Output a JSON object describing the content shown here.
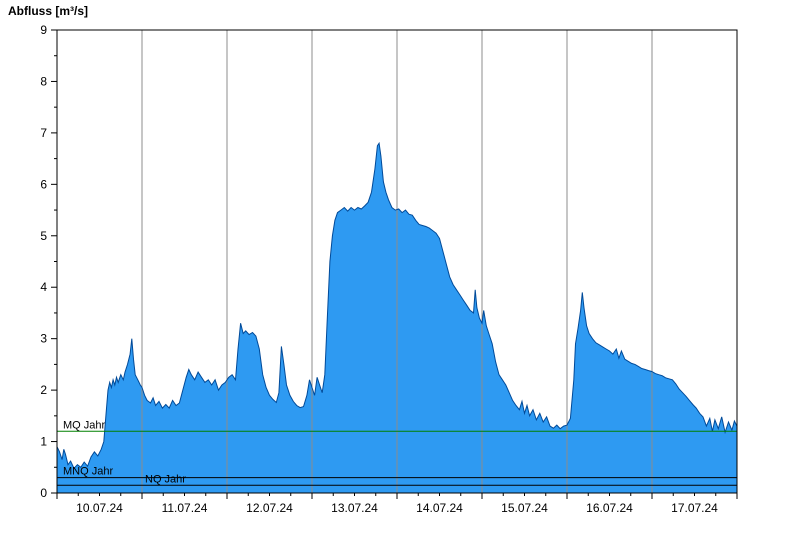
{
  "chart_data": {
    "type": "area",
    "title": "Abfluss [m³/s]",
    "xlabel": "",
    "ylabel": "Abfluss [m³/s]",
    "x_axis": {
      "labels": [
        "10.07.24",
        "11.07.24",
        "12.07.24",
        "13.07.24",
        "14.07.24",
        "15.07.24",
        "16.07.24",
        "17.07.24"
      ],
      "range_days": [
        0,
        8
      ]
    },
    "y_axis": {
      "min": 0,
      "max": 9,
      "tick_labels": [
        "0",
        "1",
        "2",
        "3",
        "4",
        "5",
        "6",
        "7",
        "8",
        "9"
      ]
    },
    "grid": "vertical-day-boundaries",
    "legend": "none",
    "series": [
      {
        "name": "Abfluss",
        "t_days": [
          0.0,
          0.03,
          0.06,
          0.08,
          0.1,
          0.13,
          0.16,
          0.2,
          0.24,
          0.28,
          0.32,
          0.36,
          0.4,
          0.44,
          0.48,
          0.52,
          0.55,
          0.58,
          0.6,
          0.62,
          0.64,
          0.66,
          0.68,
          0.7,
          0.72,
          0.75,
          0.78,
          0.8,
          0.83,
          0.86,
          0.88,
          0.9,
          0.92,
          0.95,
          0.98,
          1.0,
          1.03,
          1.06,
          1.1,
          1.13,
          1.16,
          1.2,
          1.24,
          1.28,
          1.32,
          1.36,
          1.4,
          1.44,
          1.48,
          1.52,
          1.55,
          1.58,
          1.62,
          1.66,
          1.7,
          1.74,
          1.78,
          1.82,
          1.86,
          1.9,
          1.94,
          1.98,
          2.02,
          2.06,
          2.1,
          2.13,
          2.16,
          2.19,
          2.22,
          2.26,
          2.3,
          2.34,
          2.38,
          2.42,
          2.46,
          2.5,
          2.54,
          2.58,
          2.61,
          2.64,
          2.67,
          2.7,
          2.74,
          2.78,
          2.82,
          2.86,
          2.9,
          2.94,
          2.97,
          3.0,
          3.03,
          3.06,
          3.09,
          3.12,
          3.15,
          3.18,
          3.21,
          3.24,
          3.27,
          3.3,
          3.34,
          3.38,
          3.42,
          3.46,
          3.5,
          3.54,
          3.58,
          3.62,
          3.66,
          3.7,
          3.74,
          3.77,
          3.79,
          3.81,
          3.84,
          3.87,
          3.9,
          3.94,
          3.98,
          4.02,
          4.06,
          4.1,
          4.14,
          4.18,
          4.22,
          4.26,
          4.3,
          4.34,
          4.38,
          4.42,
          4.46,
          4.5,
          4.54,
          4.58,
          4.62,
          4.66,
          4.7,
          4.74,
          4.78,
          4.82,
          4.86,
          4.9,
          4.92,
          4.94,
          4.97,
          5.0,
          5.02,
          5.05,
          5.08,
          5.12,
          5.16,
          5.2,
          5.24,
          5.28,
          5.32,
          5.36,
          5.4,
          5.44,
          5.47,
          5.5,
          5.53,
          5.56,
          5.6,
          5.64,
          5.68,
          5.72,
          5.76,
          5.8,
          5.84,
          5.88,
          5.92,
          5.96,
          6.0,
          6.04,
          6.08,
          6.1,
          6.13,
          6.16,
          6.18,
          6.2,
          6.23,
          6.26,
          6.3,
          6.34,
          6.38,
          6.42,
          6.46,
          6.5,
          6.54,
          6.58,
          6.61,
          6.64,
          6.68,
          6.72,
          6.76,
          6.8,
          6.84,
          6.88,
          6.92,
          6.96,
          7.0,
          7.04,
          7.08,
          7.12,
          7.16,
          7.2,
          7.24,
          7.28,
          7.32,
          7.36,
          7.4,
          7.44,
          7.48,
          7.52,
          7.56,
          7.6,
          7.64,
          7.68,
          7.71,
          7.74,
          7.78,
          7.82,
          7.86,
          7.9,
          7.94,
          7.97,
          8.0
        ],
        "values": [
          0.9,
          0.8,
          0.65,
          0.85,
          0.75,
          0.55,
          0.62,
          0.48,
          0.55,
          0.5,
          0.6,
          0.52,
          0.7,
          0.8,
          0.72,
          0.85,
          1.0,
          1.6,
          2.0,
          2.15,
          2.05,
          2.2,
          2.1,
          2.25,
          2.15,
          2.3,
          2.2,
          2.35,
          2.5,
          2.7,
          3.0,
          2.6,
          2.3,
          2.2,
          2.1,
          2.05,
          1.9,
          1.8,
          1.75,
          1.85,
          1.7,
          1.78,
          1.65,
          1.72,
          1.65,
          1.8,
          1.7,
          1.75,
          2.0,
          2.25,
          2.4,
          2.3,
          2.2,
          2.35,
          2.25,
          2.15,
          2.2,
          2.1,
          2.2,
          2.0,
          2.1,
          2.15,
          2.25,
          2.3,
          2.2,
          2.8,
          3.3,
          3.1,
          3.15,
          3.08,
          3.12,
          3.05,
          2.8,
          2.3,
          2.05,
          1.9,
          1.82,
          1.76,
          1.95,
          2.85,
          2.5,
          2.1,
          1.9,
          1.78,
          1.7,
          1.66,
          1.68,
          1.9,
          2.2,
          2.05,
          1.9,
          2.25,
          2.1,
          1.95,
          2.3,
          3.4,
          4.5,
          5.0,
          5.3,
          5.45,
          5.5,
          5.55,
          5.48,
          5.55,
          5.5,
          5.55,
          5.52,
          5.58,
          5.65,
          5.85,
          6.3,
          6.75,
          6.8,
          6.55,
          6.05,
          5.85,
          5.7,
          5.55,
          5.5,
          5.52,
          5.45,
          5.5,
          5.42,
          5.4,
          5.3,
          5.22,
          5.2,
          5.18,
          5.15,
          5.1,
          5.05,
          4.95,
          4.7,
          4.45,
          4.2,
          4.05,
          3.95,
          3.85,
          3.75,
          3.65,
          3.55,
          3.5,
          3.95,
          3.6,
          3.4,
          3.3,
          3.55,
          3.25,
          3.1,
          2.9,
          2.55,
          2.3,
          2.2,
          2.1,
          1.95,
          1.8,
          1.7,
          1.62,
          1.78,
          1.55,
          1.7,
          1.5,
          1.62,
          1.42,
          1.55,
          1.38,
          1.48,
          1.3,
          1.26,
          1.32,
          1.25,
          1.3,
          1.32,
          1.45,
          2.2,
          2.9,
          3.2,
          3.55,
          3.9,
          3.6,
          3.25,
          3.1,
          3.0,
          2.92,
          2.88,
          2.84,
          2.8,
          2.76,
          2.7,
          2.8,
          2.62,
          2.76,
          2.6,
          2.56,
          2.52,
          2.5,
          2.46,
          2.42,
          2.4,
          2.38,
          2.36,
          2.32,
          2.3,
          2.28,
          2.24,
          2.22,
          2.2,
          2.12,
          2.02,
          1.95,
          1.88,
          1.8,
          1.72,
          1.65,
          1.55,
          1.48,
          1.3,
          1.45,
          1.2,
          1.42,
          1.25,
          1.48,
          1.18,
          1.38,
          1.22,
          1.4,
          1.3
        ]
      }
    ],
    "reference_lines": [
      {
        "id": "mq",
        "label": "MQ Jahr",
        "value": 1.2,
        "color": "#008000",
        "label_offset_x": 6
      },
      {
        "id": "mnq",
        "label": "MNQ Jahr",
        "value": 0.3,
        "color": "#000000",
        "label_offset_x": 6
      },
      {
        "id": "nq",
        "label": "NQ Jahr",
        "value": 0.15,
        "color": "#000000",
        "label_offset_x": 88
      }
    ],
    "colors": {
      "area_fill": "#2E9AF2",
      "area_stroke": "#004A99",
      "grid": "#8C8C8C",
      "axis": "#000000",
      "text": "#000000",
      "background": "#FFFFFF"
    },
    "layout": {
      "plot_left": 57,
      "plot_right": 737,
      "plot_top": 30,
      "plot_bottom": 493,
      "x_tick_label_y": 512
    }
  }
}
